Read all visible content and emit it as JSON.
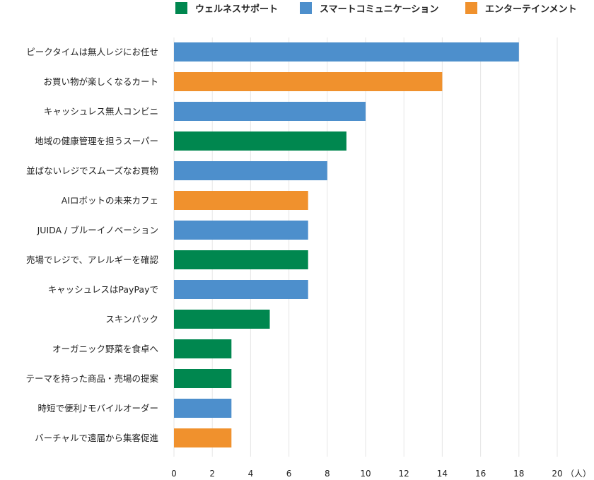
{
  "chart_data": {
    "type": "bar",
    "orientation": "horizontal",
    "legend_position": "top",
    "grid": true,
    "xlim": [
      0,
      20
    ],
    "xticks": [
      0,
      2,
      4,
      6,
      8,
      10,
      12,
      14,
      16,
      18,
      20
    ],
    "xunit": "（人）",
    "legend": [
      {
        "key": "wellness",
        "label": "ウェルネスサポート",
        "color": "#00874f"
      },
      {
        "key": "smart",
        "label": "スマートコミュニケーション",
        "color": "#4d8fcc"
      },
      {
        "key": "entertainment",
        "label": "エンターテインメント",
        "color": "#f0912d"
      }
    ],
    "categories": [
      "ピークタイムは無人レジにお任せ",
      "お買い物が楽しくなるカート",
      "キャッシュレス無人コンビニ",
      "地域の健康管理を担うスーパー",
      "並ばないレジでスムーズなお買物",
      "AIロボットの未来カフェ",
      "JUIDA / ブルーイノベーション",
      "売場でレジで、アレルギーを確認",
      "キャッシュレスはPayPayで",
      "スキンパック",
      "オーガニック野菜を食卓へ",
      "テーマを持った商品・売場の提案",
      "時短で便利♪モバイルオーダー",
      "バーチャルで遠届から集客促進"
    ],
    "values": [
      18,
      14,
      10,
      9,
      8,
      7,
      7,
      7,
      7,
      5,
      3,
      3,
      3,
      3
    ],
    "groups": [
      "smart",
      "entertainment",
      "smart",
      "wellness",
      "smart",
      "entertainment",
      "smart",
      "wellness",
      "smart",
      "wellness",
      "wellness",
      "wellness",
      "smart",
      "entertainment"
    ]
  }
}
